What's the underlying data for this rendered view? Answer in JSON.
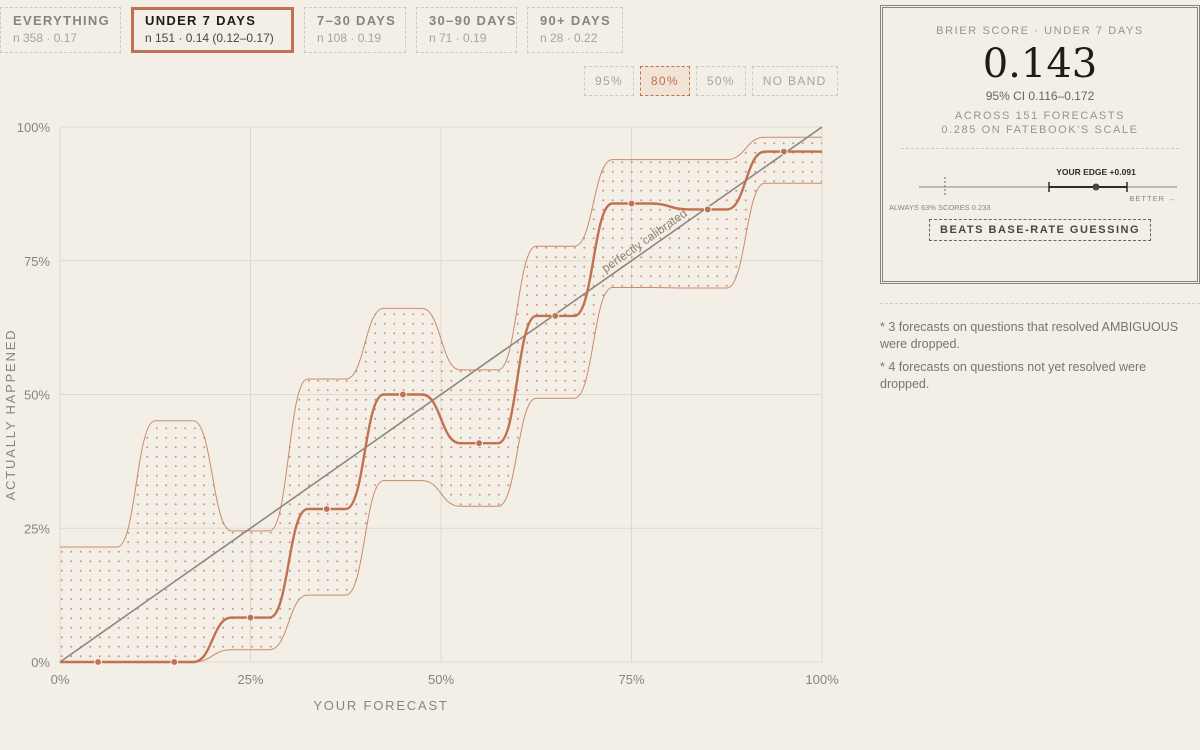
{
  "tabs": [
    {
      "label": "EVERYTHING",
      "sub": "n 358 · 0.17",
      "active": false
    },
    {
      "label": "UNDER 7 DAYS",
      "sub": "n 151 · 0.14 (0.12–0.17)",
      "active": true
    },
    {
      "label": "7–30 DAYS",
      "sub": "n 108 · 0.19",
      "active": false
    },
    {
      "label": "30–90 DAYS",
      "sub": "n 71 · 0.19",
      "active": false
    },
    {
      "label": "90+ DAYS",
      "sub": "n 28 · 0.22",
      "active": false
    }
  ],
  "bands": [
    {
      "label": "95%",
      "active": false
    },
    {
      "label": "80%",
      "active": true
    },
    {
      "label": "50%",
      "active": false
    },
    {
      "label": "NO BAND",
      "active": false
    }
  ],
  "panel": {
    "label": "BRIER SCORE · UNDER 7 DAYS",
    "score": "0.143",
    "ci": "95% CI 0.116–0.172",
    "line2": "ACROSS 151 FORECASTS",
    "line3": "0.285 ON FATEBOOK'S SCALE",
    "edge_label": "YOUR EDGE +0.091",
    "better_label": "BETTER →",
    "baseline_label": "ALWAYS 63% SCORES 0.233",
    "badge": "BEATS BASE-RATE GUESSING"
  },
  "notes": [
    "* 3 forecasts on questions that resolved AMBIGUOUS were dropped.",
    "* 4 forecasts on questions not yet resolved were dropped."
  ],
  "colors": {
    "accent": "#c0714f",
    "diagonal": "#8b8780",
    "grid": "#dfd9cc",
    "text": "#8a8478",
    "dark": "#1f1c18"
  },
  "chart_data": {
    "type": "line",
    "xlabel": "YOUR FORECAST",
    "ylabel": "ACTUALLY HAPPENED",
    "xlim": [
      0,
      100
    ],
    "ylim": [
      0,
      100
    ],
    "xticks": [
      "0%",
      "25%",
      "50%",
      "75%",
      "100%"
    ],
    "yticks": [
      "0%",
      "25%",
      "50%",
      "75%",
      "100%"
    ],
    "grid": true,
    "diagonal_label": "perfectly calibrated",
    "series": [
      {
        "x": [
          5,
          15,
          25,
          35,
          45,
          55,
          65,
          75,
          85,
          95
        ],
        "values": [
          0,
          0,
          8.3,
          28.6,
          50,
          40.9,
          64.7,
          85.7,
          84.6,
          95.4
        ]
      }
    ],
    "band": {
      "level": "80%",
      "lower": [
        0,
        0,
        2.3,
        12.5,
        33.9,
        29.1,
        49.3,
        70,
        69.9,
        89.5
      ],
      "upper": [
        21.5,
        45.1,
        24.5,
        52.9,
        66.1,
        54.6,
        77.7,
        93.9,
        93.9,
        98.1
      ]
    }
  }
}
